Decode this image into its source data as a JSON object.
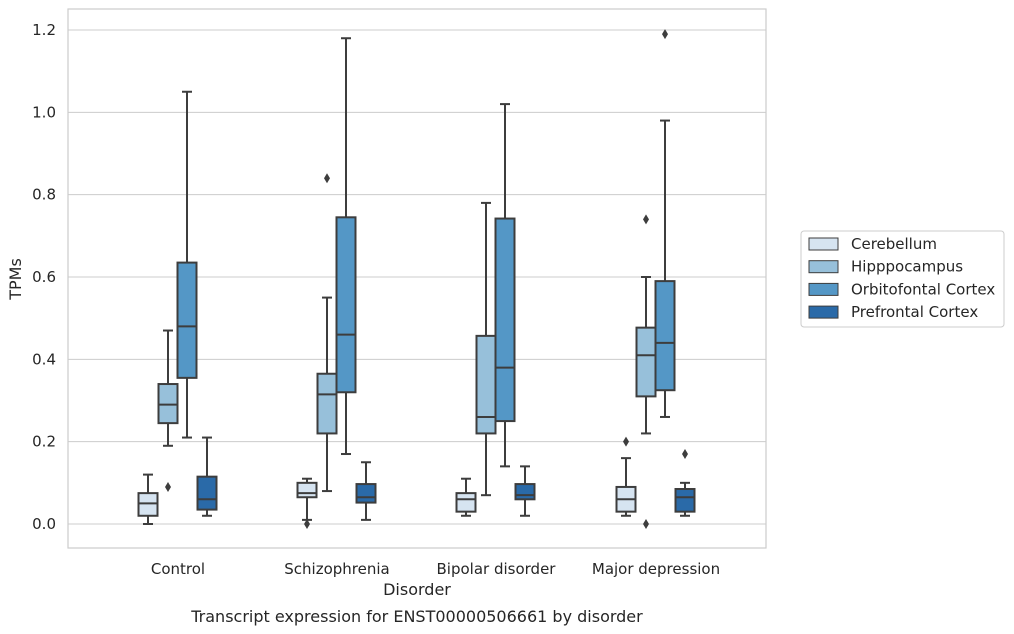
{
  "chart_data": {
    "type": "box",
    "caption": "Transcript expression for ENST00000506661 by disorder",
    "xlabel": "Disorder",
    "ylabel": "TPMs",
    "ylim": [
      -0.058,
      1.25
    ],
    "yticks": [
      "0.0",
      "0.2",
      "0.4",
      "0.6",
      "0.8",
      "1.0",
      "1.2"
    ],
    "grid": "horizontal",
    "legend_position": "right",
    "categories": [
      "Control",
      "Schizophrenia",
      "Bipolar disorder",
      "Major depression"
    ],
    "series": [
      {
        "name": "Cerebellum",
        "color": "#d6e4f1",
        "boxes": [
          {
            "whisker_low": 0.0,
            "q1": 0.02,
            "median": 0.05,
            "q3": 0.075,
            "whisker_high": 0.12,
            "outliers": []
          },
          {
            "whisker_low": 0.01,
            "q1": 0.065,
            "median": 0.075,
            "q3": 0.1,
            "whisker_high": 0.11,
            "outliers": [
              0.0
            ]
          },
          {
            "whisker_low": 0.02,
            "q1": 0.03,
            "median": 0.06,
            "q3": 0.075,
            "whisker_high": 0.11,
            "outliers": []
          },
          {
            "whisker_low": 0.02,
            "q1": 0.03,
            "median": 0.06,
            "q3": 0.09,
            "whisker_high": 0.16,
            "outliers": [
              0.2
            ]
          }
        ]
      },
      {
        "name": "Hipppocampus",
        "color": "#97c0da",
        "boxes": [
          {
            "whisker_low": 0.19,
            "q1": 0.245,
            "median": 0.29,
            "q3": 0.34,
            "whisker_high": 0.47,
            "outliers": [
              0.09
            ]
          },
          {
            "whisker_low": 0.08,
            "q1": 0.22,
            "median": 0.315,
            "q3": 0.365,
            "whisker_high": 0.55,
            "outliers": [
              0.84
            ]
          },
          {
            "whisker_low": 0.07,
            "q1": 0.22,
            "median": 0.26,
            "q3": 0.457,
            "whisker_high": 0.78,
            "outliers": []
          },
          {
            "whisker_low": 0.22,
            "q1": 0.31,
            "median": 0.41,
            "q3": 0.477,
            "whisker_high": 0.6,
            "outliers": [
              0.74,
              0.0
            ]
          }
        ]
      },
      {
        "name": "Orbitofontal Cortex",
        "color": "#5497c6",
        "boxes": [
          {
            "whisker_low": 0.21,
            "q1": 0.355,
            "median": 0.48,
            "q3": 0.635,
            "whisker_high": 1.05,
            "outliers": []
          },
          {
            "whisker_low": 0.17,
            "q1": 0.32,
            "median": 0.46,
            "q3": 0.745,
            "whisker_high": 1.18,
            "outliers": []
          },
          {
            "whisker_low": 0.14,
            "q1": 0.25,
            "median": 0.38,
            "q3": 0.742,
            "whisker_high": 1.02,
            "outliers": []
          },
          {
            "whisker_low": 0.26,
            "q1": 0.325,
            "median": 0.44,
            "q3": 0.59,
            "whisker_high": 0.98,
            "outliers": [
              1.19
            ]
          }
        ]
      },
      {
        "name": "Prefrontal Cortex",
        "color": "#2a6aa8",
        "boxes": [
          {
            "whisker_low": 0.02,
            "q1": 0.035,
            "median": 0.06,
            "q3": 0.115,
            "whisker_high": 0.21,
            "outliers": []
          },
          {
            "whisker_low": 0.01,
            "q1": 0.052,
            "median": 0.065,
            "q3": 0.097,
            "whisker_high": 0.15,
            "outliers": []
          },
          {
            "whisker_low": 0.02,
            "q1": 0.06,
            "median": 0.07,
            "q3": 0.097,
            "whisker_high": 0.14,
            "outliers": []
          },
          {
            "whisker_low": 0.02,
            "q1": 0.03,
            "median": 0.065,
            "q3": 0.085,
            "whisker_high": 0.1,
            "outliers": [
              0.17
            ]
          }
        ]
      }
    ]
  }
}
